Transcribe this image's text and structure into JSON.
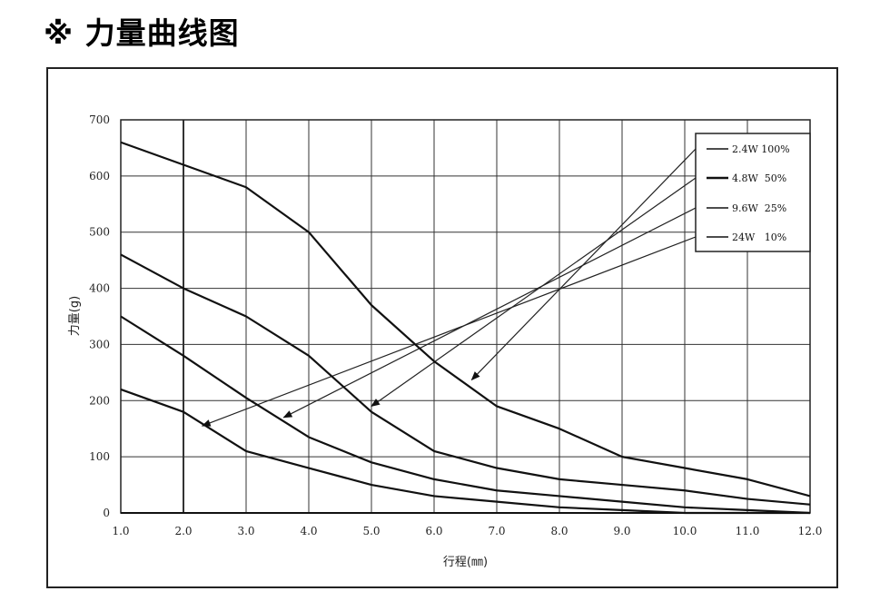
{
  "title": "※ 力量曲线图",
  "chart_data": {
    "type": "line",
    "xlabel": "行程(㎜)",
    "ylabel": "力量(g)",
    "xlim": [
      1.0,
      12.0
    ],
    "ylim": [
      0,
      700
    ],
    "x_ticks": [
      "1.0",
      "2.0",
      "3.0",
      "4.0",
      "5.0",
      "6.0",
      "7.0",
      "8.0",
      "9.0",
      "10.0",
      "11.0",
      "12.0"
    ],
    "y_ticks": [
      "0",
      "100",
      "200",
      "300",
      "400",
      "500",
      "600",
      "700"
    ],
    "grid": true,
    "legend_position": "top-right",
    "series": [
      {
        "name": "2.4W 100%",
        "x": [
          1,
          2,
          3,
          4,
          5,
          6,
          7,
          8,
          9,
          10,
          11,
          12
        ],
        "y": [
          660,
          620,
          580,
          500,
          370,
          270,
          190,
          150,
          100,
          80,
          60,
          30
        ]
      },
      {
        "name": "4.8W  50%",
        "x": [
          1,
          2,
          3,
          4,
          5,
          6,
          7,
          8,
          9,
          10,
          11,
          12
        ],
        "y": [
          460,
          400,
          350,
          280,
          180,
          110,
          80,
          60,
          50,
          40,
          25,
          15
        ]
      },
      {
        "name": "9.6W  25%",
        "x": [
          1,
          2,
          3,
          4,
          5,
          6,
          7,
          8,
          9,
          10,
          11,
          12
        ],
        "y": [
          350,
          280,
          205,
          135,
          90,
          60,
          40,
          30,
          20,
          10,
          5,
          0
        ]
      },
      {
        "name": "24W   10%",
        "x": [
          1,
          2,
          3,
          4,
          5,
          6,
          7,
          8,
          9,
          10,
          11,
          12
        ],
        "y": [
          220,
          180,
          110,
          80,
          50,
          30,
          20,
          10,
          5,
          0,
          0,
          0
        ]
      }
    ],
    "callouts": [
      {
        "series": "2.4W 100%",
        "x": 6.6,
        "y": 237
      },
      {
        "series": "4.8W  50%",
        "x": 5.0,
        "y": 190
      },
      {
        "series": "9.6W  25%",
        "x": 3.6,
        "y": 170
      },
      {
        "series": "24W   10%",
        "x": 2.3,
        "y": 155
      }
    ]
  }
}
